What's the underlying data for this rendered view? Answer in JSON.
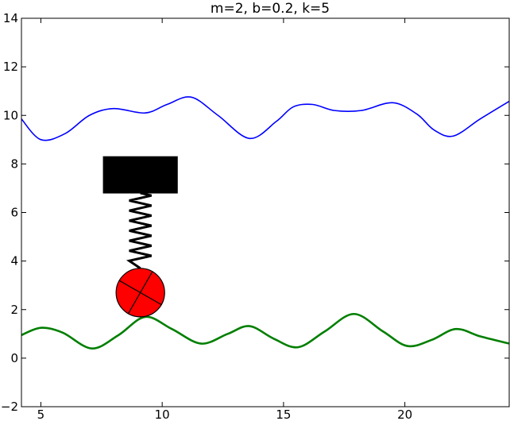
{
  "chart_data": {
    "type": "line",
    "title": "m=2, b=0.2, k=5",
    "xlabel": "",
    "ylabel": "",
    "xlim": [
      4.2,
      24.3
    ],
    "ylim": [
      -2,
      14
    ],
    "x_ticks": [
      5,
      10,
      15,
      20
    ],
    "y_ticks": [
      -2,
      0,
      2,
      4,
      6,
      8,
      10,
      12,
      14
    ],
    "grid": false,
    "series": [
      {
        "color": "#0000ff",
        "points": [
          [
            4.2,
            9.85
          ],
          [
            5.0,
            9.0
          ],
          [
            6.0,
            9.25
          ],
          [
            7.0,
            10.0
          ],
          [
            8.0,
            10.28
          ],
          [
            9.3,
            10.1
          ],
          [
            10.2,
            10.45
          ],
          [
            11.2,
            10.75
          ],
          [
            12.3,
            10.0
          ],
          [
            13.6,
            9.05
          ],
          [
            14.7,
            9.75
          ],
          [
            15.4,
            10.35
          ],
          [
            16.2,
            10.45
          ],
          [
            17.1,
            10.2
          ],
          [
            18.2,
            10.2
          ],
          [
            19.5,
            10.52
          ],
          [
            20.5,
            10.05
          ],
          [
            21.2,
            9.4
          ],
          [
            22.0,
            9.15
          ],
          [
            23.1,
            9.85
          ],
          [
            24.3,
            10.58
          ]
        ]
      },
      {
        "color": "#007f00",
        "points": [
          [
            4.2,
            0.95
          ],
          [
            5.0,
            1.25
          ],
          [
            5.9,
            1.05
          ],
          [
            7.1,
            0.4
          ],
          [
            8.2,
            0.95
          ],
          [
            9.3,
            1.7
          ],
          [
            10.4,
            1.2
          ],
          [
            11.6,
            0.6
          ],
          [
            12.7,
            1.0
          ],
          [
            13.6,
            1.32
          ],
          [
            14.6,
            0.8
          ],
          [
            15.6,
            0.45
          ],
          [
            16.7,
            1.1
          ],
          [
            17.9,
            1.82
          ],
          [
            19.1,
            1.1
          ],
          [
            20.1,
            0.5
          ],
          [
            21.1,
            0.75
          ],
          [
            22.1,
            1.2
          ],
          [
            23.1,
            0.9
          ],
          [
            24.3,
            0.6
          ]
        ]
      }
    ],
    "scene": {
      "block": {
        "x_center": 9.1,
        "y_center": 7.55,
        "width": 3.05,
        "height": 1.5,
        "color": "#000000"
      },
      "spring": {
        "x": 9.1,
        "y_top": 6.8,
        "y_bottom": 3.7,
        "coils": 7,
        "color": "#000000"
      },
      "mass": {
        "x": 9.1,
        "y": 2.7,
        "radius_x": 1.0,
        "color": "#ff0000"
      }
    }
  }
}
